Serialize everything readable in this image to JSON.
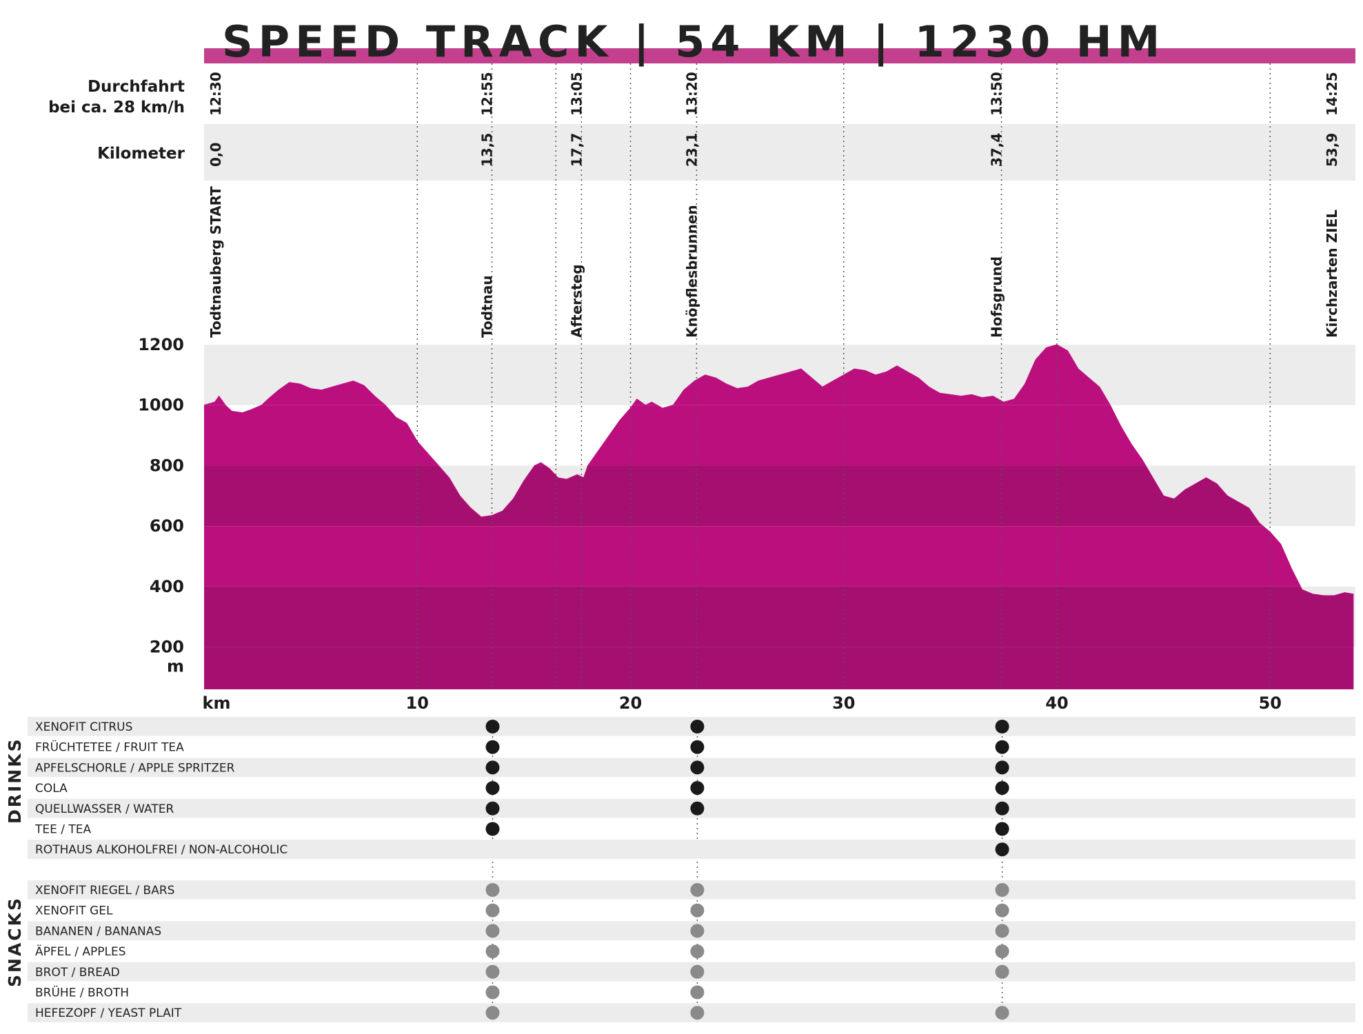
{
  "title": "SPEED TRACK | 54 KM | 1230 HM",
  "row_labels": {
    "time_line1": "Durchfahrt",
    "time_line2": "bei ca. 28 km/h",
    "km": "Kilometer"
  },
  "stations": [
    {
      "name": "Todtnauberg START",
      "km_label": "0,0",
      "time": "12:30",
      "km": 0.0
    },
    {
      "name": "Todtnau",
      "km_label": "13,5",
      "time": "12:55",
      "km": 13.5
    },
    {
      "name": "Aftersteg",
      "km_label": "17,7",
      "time": "13:05",
      "km": 17.7
    },
    {
      "name": "Knöpflesbrunnen",
      "km_label": "23,1",
      "time": "13:20",
      "km": 23.1
    },
    {
      "name": "Hofsgrund",
      "km_label": "37,4",
      "time": "13:50",
      "km": 37.4
    },
    {
      "name": "Kirchzarten ZIEL",
      "km_label": "53,9",
      "time": "14:25",
      "km": 53.9
    }
  ],
  "feed_stations": [
    13.5,
    23.1,
    37.4
  ],
  "drinks_label": "DRINKS",
  "snacks_label": "SNACKS",
  "drinks": [
    {
      "label": "XENOFIT CITRUS",
      "at": [
        true,
        true,
        true
      ]
    },
    {
      "label": "FRÜCHTETEE / FRUIT TEA",
      "at": [
        true,
        true,
        true
      ]
    },
    {
      "label": "APFELSCHORLE / APPLE SPRITZER",
      "at": [
        true,
        true,
        true
      ]
    },
    {
      "label": "COLA",
      "at": [
        true,
        true,
        true
      ]
    },
    {
      "label": "QUELLWASSER / WATER",
      "at": [
        true,
        true,
        true
      ]
    },
    {
      "label": "TEE / TEA",
      "at": [
        true,
        false,
        true
      ]
    },
    {
      "label": "ROTHAUS ALKOHOLFREI / NON-ALCOHOLIC",
      "at": [
        false,
        false,
        true
      ]
    }
  ],
  "snacks": [
    {
      "label": "XENOFIT RIEGEL / BARS",
      "at": [
        true,
        true,
        true
      ]
    },
    {
      "label": "XENOFIT GEL",
      "at": [
        true,
        true,
        true
      ]
    },
    {
      "label": "BANANEN / BANANAS",
      "at": [
        true,
        true,
        true
      ]
    },
    {
      "label": "ÄPFEL / APPLES",
      "at": [
        true,
        true,
        true
      ]
    },
    {
      "label": "BROT / BREAD",
      "at": [
        true,
        true,
        true
      ]
    },
    {
      "label": "BRÜHE / BROTH",
      "at": [
        true,
        true,
        false
      ]
    },
    {
      "label": "HEFEZOPF / YEAST PLAIT",
      "at": [
        true,
        true,
        true
      ]
    }
  ],
  "colors": {
    "accent": "#c2408e",
    "fill_light": "#bb0f7e",
    "fill_dark": "#a50f70",
    "band_grey": "#ececec",
    "drink_dot": "#1a1a1a",
    "snack_dot": "#8a8a8a"
  },
  "chart_data": {
    "type": "area",
    "xlabel": "km",
    "ylabel": "m",
    "xlim": [
      0,
      54
    ],
    "ylim": [
      60,
      1200
    ],
    "x_ticks": [
      10,
      20,
      30,
      40,
      50
    ],
    "x_tick_labels": [
      "10",
      "20",
      "30",
      "40",
      "50"
    ],
    "y_ticks": [
      200,
      400,
      600,
      800,
      1000,
      1200
    ],
    "y_tick_labels": [
      "200",
      "400",
      "600",
      "800",
      "1000",
      "1200"
    ],
    "km_gridlines": [
      10,
      16.5,
      20,
      30,
      40,
      50
    ],
    "grid": true,
    "series": [
      {
        "x": [
          0,
          0.5,
          0.7,
          1.0,
          1.3,
          1.8,
          2.2,
          2.7,
          3.0,
          3.5,
          4.0,
          4.5,
          5.0,
          5.5,
          6.0,
          6.5,
          7.0,
          7.5,
          8.0,
          8.5,
          9.0,
          9.5,
          10.0,
          10.5,
          11.0,
          11.5,
          12.0,
          12.5,
          13.0,
          13.5,
          14.0,
          14.5,
          15.0,
          15.5,
          15.8,
          16.2,
          16.6,
          17.0,
          17.5,
          17.8,
          18.0,
          18.5,
          19.0,
          19.5,
          20.0,
          20.3,
          20.7,
          21.0,
          21.5,
          22.0,
          22.5,
          23.0,
          23.5,
          24.0,
          24.5,
          25.0,
          25.5,
          26.0,
          26.5,
          27.0,
          27.5,
          28.0,
          28.5,
          29.0,
          29.5,
          30.0,
          30.5,
          31.0,
          31.5,
          32.0,
          32.5,
          33.0,
          33.5,
          34.0,
          34.5,
          35.0,
          35.5,
          36.0,
          36.5,
          37.0,
          37.5,
          38.0,
          38.5,
          39.0,
          39.5,
          40.0,
          40.5,
          41.0,
          41.5,
          42.0,
          42.5,
          43.0,
          43.5,
          44.0,
          44.5,
          45.0,
          45.5,
          46.0,
          46.5,
          47.0,
          47.5,
          48.0,
          48.5,
          49.0,
          49.5,
          50.0,
          50.5,
          51.0,
          51.5,
          52.0,
          52.5,
          53.0,
          53.5,
          53.9
        ],
        "y": [
          1000,
          1010,
          1030,
          1000,
          980,
          975,
          985,
          1000,
          1020,
          1050,
          1075,
          1070,
          1055,
          1050,
          1060,
          1070,
          1080,
          1065,
          1030,
          1000,
          960,
          940,
          880,
          840,
          800,
          760,
          700,
          660,
          630,
          635,
          650,
          690,
          750,
          800,
          810,
          790,
          760,
          755,
          770,
          760,
          800,
          850,
          900,
          950,
          990,
          1020,
          1000,
          1010,
          990,
          1000,
          1050,
          1080,
          1100,
          1090,
          1070,
          1055,
          1060,
          1080,
          1090,
          1100,
          1110,
          1120,
          1090,
          1060,
          1080,
          1100,
          1120,
          1115,
          1100,
          1110,
          1130,
          1110,
          1090,
          1060,
          1040,
          1035,
          1030,
          1035,
          1025,
          1030,
          1010,
          1020,
          1070,
          1150,
          1190,
          1200,
          1180,
          1120,
          1090,
          1060,
          1000,
          930,
          870,
          820,
          760,
          700,
          690,
          720,
          740,
          760,
          740,
          700,
          680,
          660,
          610,
          580,
          540,
          460,
          390,
          375,
          370,
          370,
          380,
          375
        ]
      }
    ]
  }
}
